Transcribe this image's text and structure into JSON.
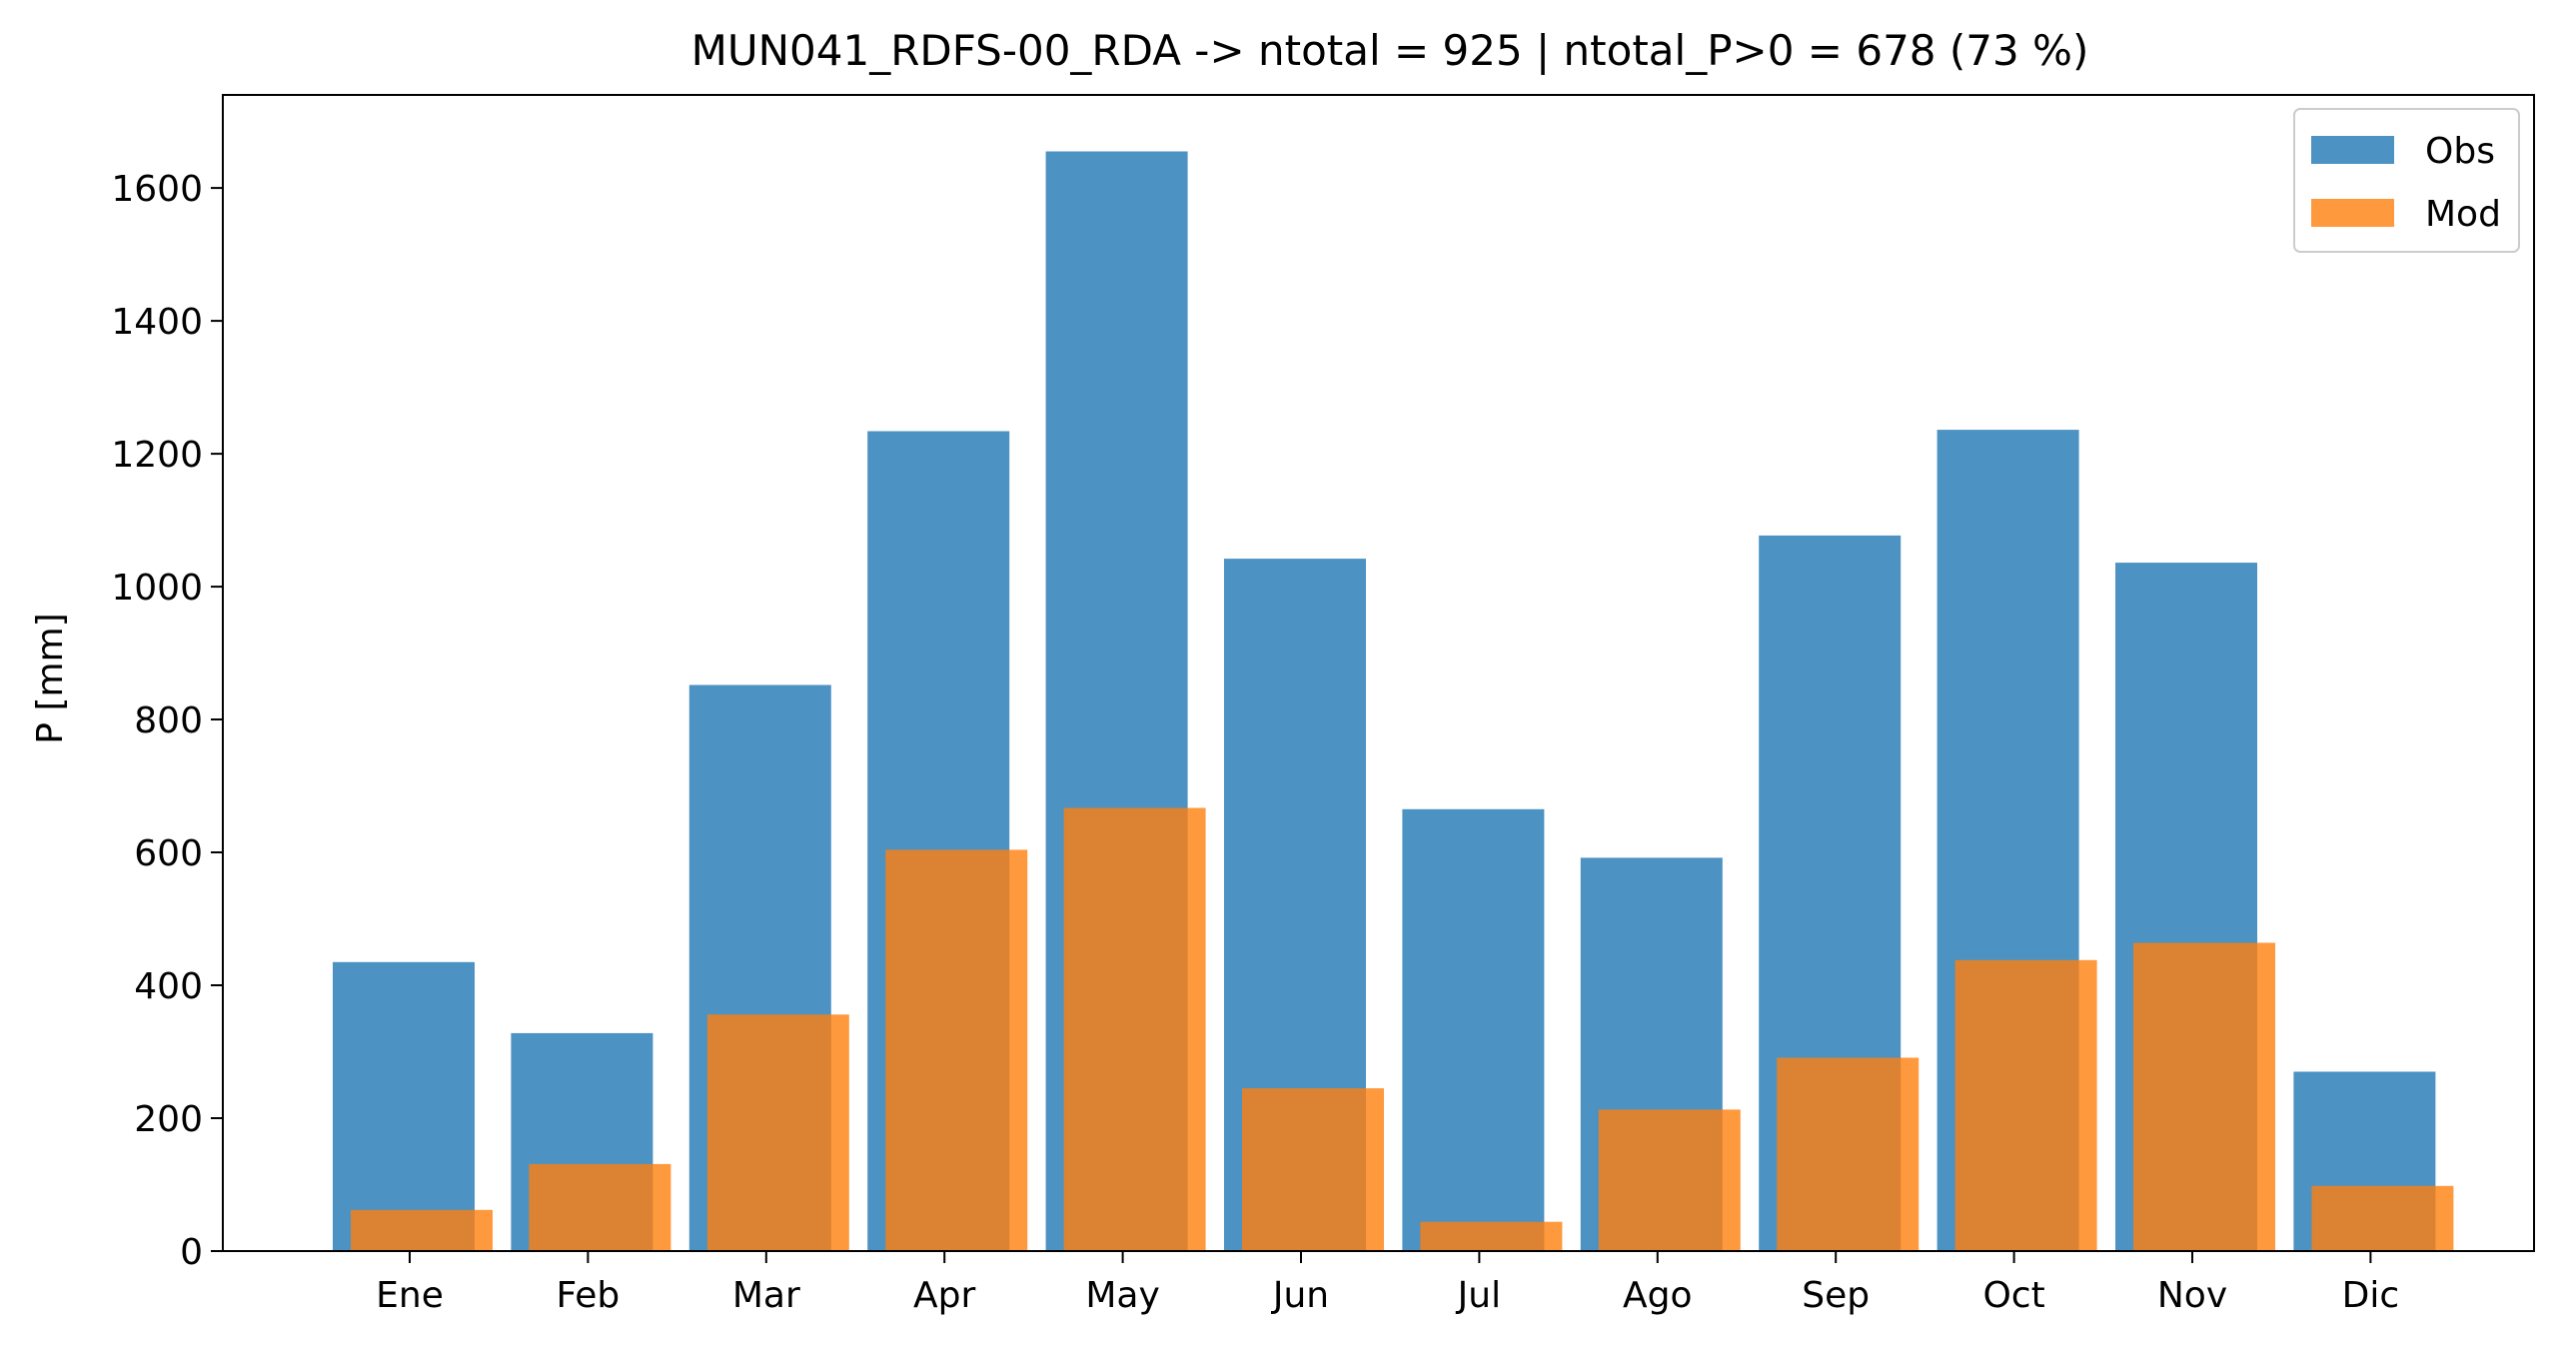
{
  "chart_data": {
    "type": "bar",
    "title": "MUN041_RDFS-00_RDA -> ntotal = 925 | ntotal_P>0 = 678 (73 %)",
    "xlabel": "",
    "ylabel": "P [mm]",
    "ylim": [
      0,
      1740
    ],
    "yticks": [
      0,
      200,
      400,
      600,
      800,
      1000,
      1200,
      1400,
      1600
    ],
    "grid": false,
    "legend_position": "top-right",
    "categories": [
      "Ene",
      "Feb",
      "Mar",
      "Apr",
      "May",
      "Jun",
      "Jul",
      "Ago",
      "Sep",
      "Oct",
      "Nov",
      "Dic"
    ],
    "series": [
      {
        "name": "Obs",
        "color": "#1f77b4",
        "opacity": 0.8,
        "values": [
          435,
          328,
          852,
          1234,
          1655,
          1042,
          665,
          592,
          1077,
          1236,
          1036,
          270
        ]
      },
      {
        "name": "Mod",
        "color": "#ff7f0e",
        "opacity": 0.8,
        "values": [
          62,
          131,
          356,
          604,
          667,
          245,
          44,
          213,
          291,
          438,
          464,
          98
        ]
      }
    ]
  }
}
